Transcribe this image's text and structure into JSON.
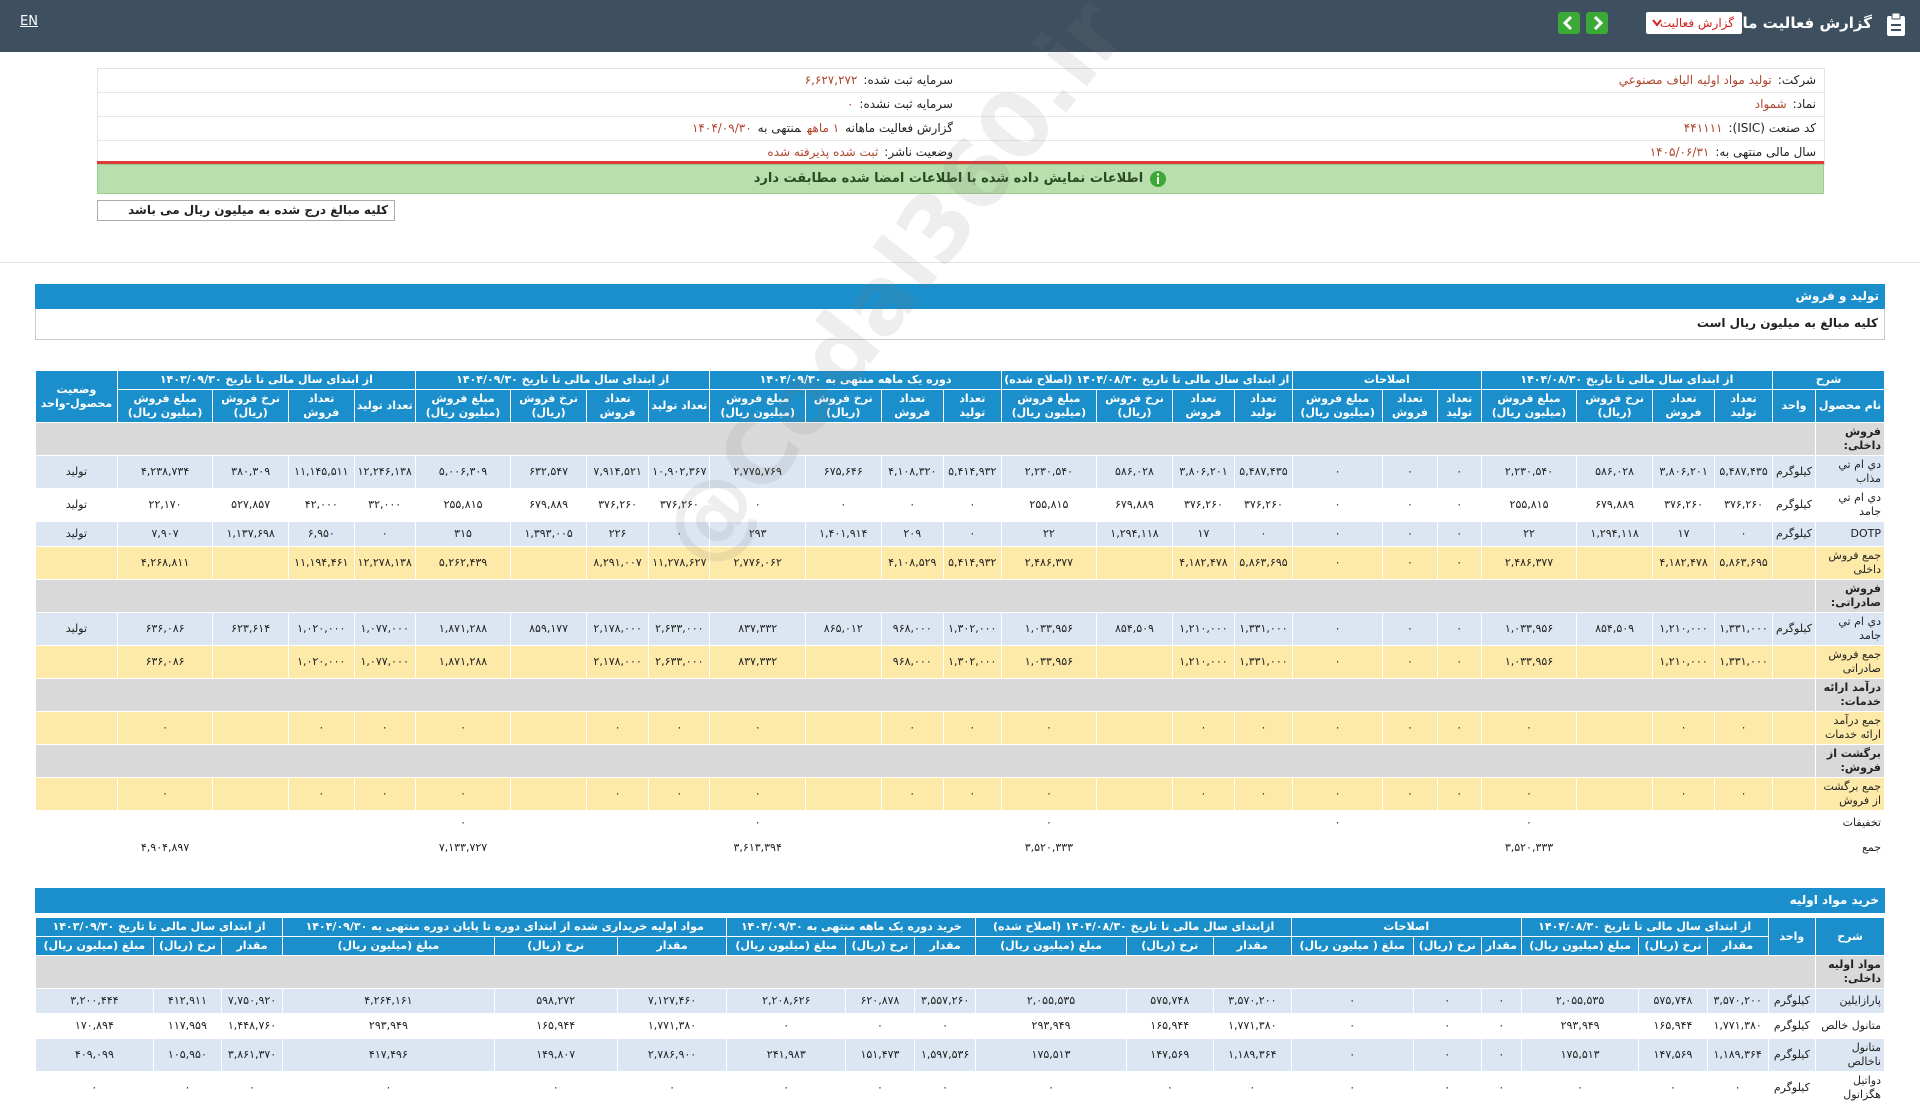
{
  "topbar": {
    "title": "گزارش فعالیت ماهانه",
    "dropdown": "گزارش فعالیت",
    "language": "EN"
  },
  "info": {
    "right": [
      {
        "label": "شرکت:",
        "value": "تولید مواد اولیه الیاف مصنوعي"
      },
      {
        "label": "نماد:",
        "value": "شمواد"
      },
      {
        "label": "کد صنعت (ISIC):",
        "value": "۴۴۱۱۱۱"
      },
      {
        "label": "سال مالی منتهی به:",
        "value": "۱۴۰۵/۰۶/۳۱"
      }
    ],
    "left": [
      {
        "label": "سرمایه ثبت شده:",
        "value": "۶,۶۲۷,۲۷۲"
      },
      {
        "label": "سرمایه ثبت نشده:",
        "value": "۰"
      },
      {
        "label": "گزارش فعالیت ماهانه",
        "value": "۱ ماهه",
        "suffix": "منتهی به",
        "date": "۱۴۰۴/۰۹/۳۰"
      },
      {
        "label": "وضعیت ناشر:",
        "value": "ثبت شده پذیرفته شده"
      }
    ]
  },
  "notice": "اطلاعات نمایش داده شده با اطلاعات امضا شده مطابقت دارد",
  "amount_note": "کلیه مبالغ درج شده به میلیون ریال می باشد",
  "watermark": "@Codal360.ir",
  "production": {
    "title": "تولید و فروش",
    "note": "کلیه مبالغ به میلیون ریال است",
    "groups": [
      {
        "title": "شرح",
        "columns": [
          "نام محصول",
          "واحد"
        ]
      },
      {
        "title": "از ابتدای سال مالی تا تاریخ ۱۴۰۴/۰۸/۳۰",
        "columns": [
          "تعداد تولید",
          "تعداد فروش",
          "نرخ فروش (ریال)",
          "مبلغ فروش (میلیون ریال)"
        ]
      },
      {
        "title": "اصلاحات",
        "columns": [
          "تعداد تولید",
          "تعداد فروش",
          "مبلغ فروش (میلیون ریال)"
        ]
      },
      {
        "title": "از ابتدای سال مالی تا تاریخ ۱۴۰۴/۰۸/۳۰ (اصلاح شده)",
        "columns": [
          "تعداد تولید",
          "تعداد فروش",
          "نرخ فروش (ریال)",
          "مبلغ فروش (میلیون ریال)"
        ]
      },
      {
        "title": "دوره یک ماهه منتهی به ۱۴۰۴/۰۹/۳۰",
        "columns": [
          "تعداد تولید",
          "تعداد فروش",
          "نرخ فروش (ریال)",
          "مبلغ فروش (میلیون ریال)"
        ]
      },
      {
        "title": "از ابتدای سال مالی تا تاریخ ۱۴۰۴/۰۹/۳۰",
        "columns": [
          "تعداد تولید",
          "تعداد فروش",
          "نرخ فروش (ریال)",
          "مبلغ فروش (میلیون ریال)"
        ]
      },
      {
        "title": "از ابتدای سال مالی تا تاریخ ۱۴۰۳/۰۹/۳۰",
        "columns": [
          "تعداد تولید",
          "تعداد فروش",
          "نرخ فروش (ریال)",
          "مبلغ فروش (میلیون ریال)"
        ]
      },
      {
        "title": "وضعیت محصول-واحد"
      }
    ],
    "rows": [
      {
        "label": "فروش داخلی:",
        "color": "#d9d9d9"
      },
      {
        "color": "#dce6f2",
        "cells": [
          "دي ام تي مذاب",
          "کیلوگرم",
          "۵,۴۸۷,۴۳۵",
          "۳,۸۰۶,۲۰۱",
          "۵۸۶,۰۲۸",
          "۲,۲۳۰,۵۴۰",
          "۰",
          "۰",
          "۰",
          "۵,۴۸۷,۴۳۵",
          "۳,۸۰۶,۲۰۱",
          "۵۸۶,۰۲۸",
          "۲,۲۳۰,۵۴۰",
          "۵,۴۱۴,۹۳۲",
          "۴,۱۰۸,۳۲۰",
          "۶۷۵,۶۴۶",
          "۲,۷۷۵,۷۶۹",
          "۱۰,۹۰۲,۳۶۷",
          "۷,۹۱۴,۵۲۱",
          "۶۳۲,۵۴۷",
          "۵,۰۰۶,۳۰۹",
          "۱۲,۲۴۶,۱۳۸",
          "۱۱,۱۴۵,۵۱۱",
          "۳۸۰,۳۰۹",
          "۴,۲۳۸,۷۳۴",
          "تولید"
        ]
      },
      {
        "color": "#ffffff",
        "cells": [
          "دي ام تي جامد",
          "کیلوگرم",
          "۳۷۶,۲۶۰",
          "۳۷۶,۲۶۰",
          "۶۷۹,۸۸۹",
          "۲۵۵,۸۱۵",
          "۰",
          "۰",
          "۰",
          "۳۷۶,۲۶۰",
          "۳۷۶,۲۶۰",
          "۶۷۹,۸۸۹",
          "۲۵۵,۸۱۵",
          "۰",
          "۰",
          "۰",
          "۰",
          "۳۷۶,۲۶۰",
          "۳۷۶,۲۶۰",
          "۶۷۹,۸۸۹",
          "۲۵۵,۸۱۵",
          "۳۲,۰۰۰",
          "۴۲,۰۰۰",
          "۵۲۷,۸۵۷",
          "۲۲,۱۷۰",
          "تولید"
        ]
      },
      {
        "color": "#dce6f2",
        "cells": [
          "DOTP",
          "کیلوگرم",
          "۰",
          "۱۷",
          "۱,۲۹۴,۱۱۸",
          "۲۲",
          "۰",
          "۰",
          "۰",
          "۰",
          "۱۷",
          "۱,۲۹۴,۱۱۸",
          "۲۲",
          "۰",
          "۲۰۹",
          "۱,۴۰۱,۹۱۴",
          "۲۹۳",
          "۰",
          "۲۲۶",
          "۱,۳۹۳,۰۰۵",
          "۳۱۵",
          "۰",
          "۶,۹۵۰",
          "۱,۱۳۷,۶۹۸",
          "۷,۹۰۷",
          "تولید"
        ]
      },
      {
        "color": "#fde9a8",
        "cells": [
          "جمع فروش داخلی",
          null,
          "۵,۸۶۳,۶۹۵",
          "۴,۱۸۲,۴۷۸",
          null,
          "۲,۴۸۶,۳۷۷",
          "۰",
          "۰",
          "۰",
          "۵,۸۶۳,۶۹۵",
          "۴,۱۸۲,۴۷۸",
          null,
          "۲,۴۸۶,۳۷۷",
          "۵,۴۱۴,۹۳۲",
          "۴,۱۰۸,۵۲۹",
          null,
          "۲,۷۷۶,۰۶۲",
          "۱۱,۲۷۸,۶۲۷",
          "۸,۲۹۱,۰۰۷",
          null,
          "۵,۲۶۲,۴۳۹",
          "۱۲,۲۷۸,۱۳۸",
          "۱۱,۱۹۴,۴۶۱",
          null,
          "۴,۲۶۸,۸۱۱",
          null
        ]
      },
      {
        "label": "فروش صادراتی:",
        "color": "#d9d9d9"
      },
      {
        "color": "#dce6f2",
        "cells": [
          "دي ام تي جامد",
          "کیلوگرم",
          "۱,۳۳۱,۰۰۰",
          "۱,۲۱۰,۰۰۰",
          "۸۵۴,۵۰۹",
          "۱,۰۳۳,۹۵۶",
          "۰",
          "۰",
          "۰",
          "۱,۳۳۱,۰۰۰",
          "۱,۲۱۰,۰۰۰",
          "۸۵۴,۵۰۹",
          "۱,۰۳۳,۹۵۶",
          "۱,۳۰۲,۰۰۰",
          "۹۶۸,۰۰۰",
          "۸۶۵,۰۱۲",
          "۸۳۷,۳۳۲",
          "۲,۶۳۳,۰۰۰",
          "۲,۱۷۸,۰۰۰",
          "۸۵۹,۱۷۷",
          "۱,۸۷۱,۲۸۸",
          "۱,۰۷۷,۰۰۰",
          "۱,۰۲۰,۰۰۰",
          "۶۲۳,۶۱۴",
          "۶۳۶,۰۸۶",
          "تولید"
        ]
      },
      {
        "color": "#fde9a8",
        "cells": [
          "جمع فروش صادراتی",
          null,
          "۱,۳۳۱,۰۰۰",
          "۱,۲۱۰,۰۰۰",
          null,
          "۱,۰۳۳,۹۵۶",
          "۰",
          "۰",
          "۰",
          "۱,۳۳۱,۰۰۰",
          "۱,۲۱۰,۰۰۰",
          null,
          "۱,۰۳۳,۹۵۶",
          "۱,۳۰۲,۰۰۰",
          "۹۶۸,۰۰۰",
          null,
          "۸۳۷,۳۳۲",
          "۲,۶۳۳,۰۰۰",
          "۲,۱۷۸,۰۰۰",
          null,
          "۱,۸۷۱,۲۸۸",
          "۱,۰۷۷,۰۰۰",
          "۱,۰۲۰,۰۰۰",
          null,
          "۶۳۶,۰۸۶",
          null
        ]
      },
      {
        "label": "درآمد ارائه خدمات:",
        "color": "#d9d9d9"
      },
      {
        "color": "#fde9a8",
        "cells": [
          "جمع درآمد ارائه خدمات",
          null,
          "۰",
          "۰",
          null,
          "۰",
          "۰",
          "۰",
          "۰",
          "۰",
          "۰",
          null,
          "۰",
          "۰",
          "۰",
          null,
          "۰",
          "۰",
          "۰",
          null,
          "۰",
          "۰",
          "۰",
          null,
          "۰",
          null
        ]
      },
      {
        "label": "برگشت از فروش:",
        "color": "#d9d9d9"
      },
      {
        "color": "#fde9a8",
        "cells": [
          "جمع برگشت از فروش",
          null,
          "۰",
          "۰",
          null,
          "۰",
          "۰",
          "۰",
          "۰",
          "۰",
          "۰",
          null,
          "۰",
          "۰",
          "۰",
          null,
          "۰",
          "۰",
          "۰",
          null,
          "۰",
          "۰",
          "۰",
          null,
          "۰",
          null
        ]
      },
      {
        "color": "#ffffff",
        "cells": [
          "تخفیفات",
          null,
          null,
          null,
          null,
          "۰",
          null,
          null,
          "۰",
          null,
          null,
          null,
          "۰",
          null,
          null,
          null,
          "۰",
          null,
          null,
          null,
          "۰",
          null,
          null,
          null,
          null,
          null
        ]
      },
      {
        "color": "#ffffff",
        "cells": [
          "جمع",
          null,
          null,
          null,
          null,
          "۳,۵۲۰,۳۳۳",
          null,
          null,
          null,
          null,
          null,
          null,
          "۳,۵۲۰,۳۳۳",
          null,
          null,
          null,
          "۳,۶۱۳,۳۹۴",
          null,
          null,
          null,
          "۷,۱۳۳,۷۲۷",
          null,
          null,
          null,
          "۴,۹۰۴,۸۹۷",
          null
        ]
      }
    ]
  },
  "purchases": {
    "title": "خرید مواد اولیه",
    "groups": [
      {
        "title": "شرح"
      },
      {
        "title": "واحد"
      },
      {
        "title": "از ابتدای سال مالی تا تاریخ ۱۴۰۴/۰۸/۳۰",
        "columns": [
          "مقدار",
          "نرخ (ریال)",
          "مبلغ (میلیون ریال)"
        ]
      },
      {
        "title": "اصلاحات",
        "columns": [
          "مقدار",
          "نرخ (ریال)",
          "مبلغ ( میلیون ریال)"
        ]
      },
      {
        "title": "ازابتدای سال مالی تا تاریخ ۱۴۰۴/۰۸/۳۰ (اصلاح شده)",
        "columns": [
          "مقدار",
          "نرخ (ریال)",
          "مبلغ (میلیون ریال)"
        ]
      },
      {
        "title": "خرید دوره یک ماهه منتهی به ۱۴۰۴/۰۹/۳۰",
        "columns": [
          "مقدار",
          "نرخ (ریال)",
          "مبلغ (میلیون ریال)"
        ]
      },
      {
        "title": "مواد اولیه خریداری شده از ابتدای دوره تا پایان دوره منتهی به ۱۴۰۴/۰۹/۳۰",
        "columns": [
          "مقدار",
          "نرخ (ریال)",
          "مبلغ (میلیون ریال)"
        ]
      },
      {
        "title": "از ابتدای سال مالی تا تاریخ ۱۴۰۳/۰۹/۳۰",
        "columns": [
          "مقدار",
          "نرخ (ریال)",
          "مبلغ (میلیون ریال)"
        ]
      }
    ],
    "rows": [
      {
        "label": "مواد اولیه داخلی:",
        "color": "#d9d9d9"
      },
      {
        "color": "#dce6f2",
        "cells": [
          "پارازایلین",
          "کیلوگرم",
          "۳,۵۷۰,۲۰۰",
          "۵۷۵,۷۴۸",
          "۲,۰۵۵,۵۳۵",
          "۰",
          "۰",
          "۰",
          "۳,۵۷۰,۲۰۰",
          "۵۷۵,۷۴۸",
          "۲,۰۵۵,۵۳۵",
          "۳,۵۵۷,۲۶۰",
          "۶۲۰,۸۷۸",
          "۲,۲۰۸,۶۲۶",
          "۷,۱۲۷,۴۶۰",
          "۵۹۸,۲۷۲",
          "۴,۲۶۴,۱۶۱",
          "۷,۷۵۰,۹۲۰",
          "۴۱۲,۹۱۱",
          "۳,۲۰۰,۴۴۴"
        ]
      },
      {
        "color": "#ffffff",
        "cells": [
          "متانول خالص",
          "کیلوگرم",
          "۱,۷۷۱,۳۸۰",
          "۱۶۵,۹۴۴",
          "۲۹۳,۹۴۹",
          "۰",
          "۰",
          "۰",
          "۱,۷۷۱,۳۸۰",
          "۱۶۵,۹۴۴",
          "۲۹۳,۹۴۹",
          "۰",
          "۰",
          "۰",
          "۱,۷۷۱,۳۸۰",
          "۱۶۵,۹۴۴",
          "۲۹۳,۹۴۹",
          "۱,۴۴۸,۷۶۰",
          "۱۱۷,۹۵۹",
          "۱۷۰,۸۹۴"
        ]
      },
      {
        "color": "#dce6f2",
        "cells": [
          "متانول ناخالص",
          "کیلوگرم",
          "۱,۱۸۹,۳۶۴",
          "۱۴۷,۵۶۹",
          "۱۷۵,۵۱۳",
          "۰",
          "۰",
          "۰",
          "۱,۱۸۹,۳۶۴",
          "۱۴۷,۵۶۹",
          "۱۷۵,۵۱۳",
          "۱,۵۹۷,۵۳۶",
          "۱۵۱,۴۷۳",
          "۲۴۱,۹۸۳",
          "۲,۷۸۶,۹۰۰",
          "۱۴۹,۸۰۷",
          "۴۱۷,۴۹۶",
          "۳,۸۶۱,۳۷۰",
          "۱۰۵,۹۵۰",
          "۴۰۹,۰۹۹"
        ]
      },
      {
        "color": "#ffffff",
        "cells": [
          "دواتیل هگزانول",
          "کیلوگرم",
          "۰",
          "۰",
          "۰",
          "۰",
          "۰",
          "۰",
          "۰",
          "۰",
          "۰",
          "۰",
          "۰",
          "۰",
          "۰",
          "۰",
          "۰",
          "۰",
          "۰",
          "۰"
        ]
      }
    ]
  }
}
